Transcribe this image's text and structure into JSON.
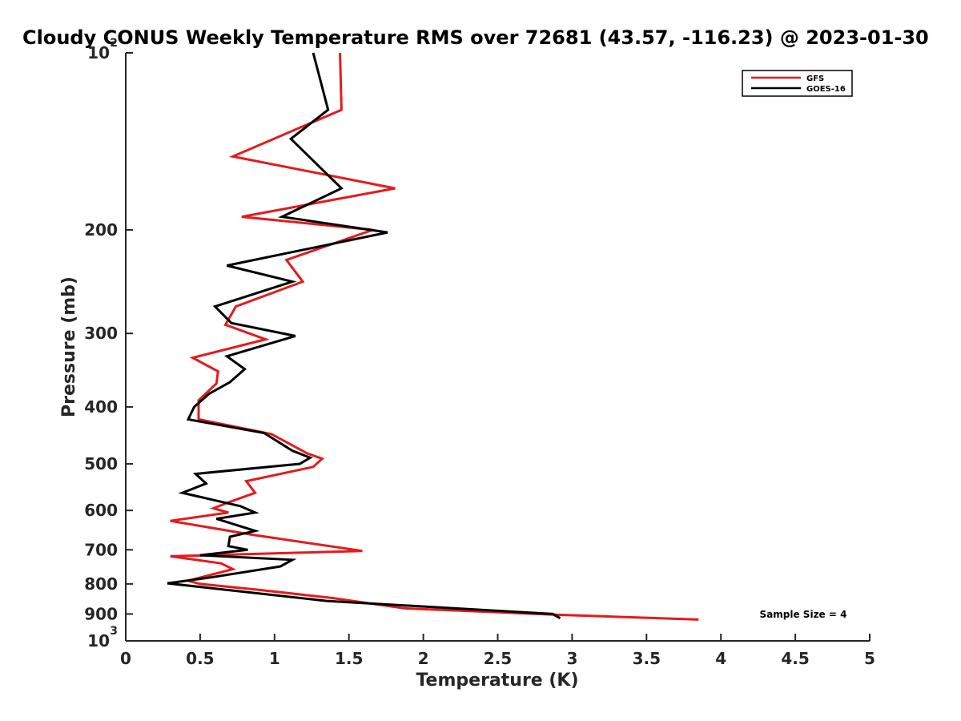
{
  "chart_data": {
    "type": "line",
    "title": "Cloudy CONUS Weekly Temperature RMS over 72681 (43.57, -116.23) @ 2023-01-30",
    "xlabel": "Temperature (K)",
    "ylabel": "Pressure (mb)",
    "xlim": [
      0,
      5
    ],
    "ylim": [
      100,
      1000
    ],
    "yscale": "log",
    "yreversed": true,
    "x_ticks": [
      0,
      0.5,
      1,
      1.5,
      2,
      2.5,
      3,
      3.5,
      4,
      4.5,
      5
    ],
    "x_tick_labels": [
      "0",
      "0.5",
      "1",
      "1.5",
      "2",
      "2.5",
      "3",
      "3.5",
      "4",
      "4.5",
      "5"
    ],
    "y_ticks": [
      {
        "value": 100,
        "label": "10",
        "exp": "2"
      },
      {
        "value": 200,
        "label": "200",
        "exp": ""
      },
      {
        "value": 300,
        "label": "300",
        "exp": ""
      },
      {
        "value": 400,
        "label": "400",
        "exp": ""
      },
      {
        "value": 500,
        "label": "500",
        "exp": ""
      },
      {
        "value": 600,
        "label": "600",
        "exp": ""
      },
      {
        "value": 700,
        "label": "700",
        "exp": ""
      },
      {
        "value": 800,
        "label": "800",
        "exp": ""
      },
      {
        "value": 900,
        "label": "900",
        "exp": ""
      },
      {
        "value": 1000,
        "label": "10",
        "exp": "3"
      }
    ],
    "grid": false,
    "legend_position": "top-right",
    "annotation": "Sample Size = 4",
    "series": [
      {
        "name": "GFS",
        "color": "#e41a1c",
        "points": [
          [
            1.44,
            100
          ],
          [
            1.45,
            125
          ],
          [
            0.72,
            150
          ],
          [
            1.81,
            170
          ],
          [
            0.78,
            190
          ],
          [
            1.66,
            200
          ],
          [
            1.08,
            225
          ],
          [
            1.19,
            245
          ],
          [
            0.74,
            270
          ],
          [
            0.67,
            290
          ],
          [
            0.94,
            307
          ],
          [
            0.45,
            330
          ],
          [
            0.62,
            348
          ],
          [
            0.61,
            365
          ],
          [
            0.49,
            390
          ],
          [
            0.49,
            420
          ],
          [
            0.98,
            445
          ],
          [
            1.22,
            480
          ],
          [
            1.32,
            490
          ],
          [
            1.26,
            506
          ],
          [
            0.81,
            535
          ],
          [
            0.87,
            560
          ],
          [
            0.7,
            580
          ],
          [
            0.59,
            595
          ],
          [
            0.69,
            605
          ],
          [
            0.3,
            625
          ],
          [
            0.85,
            660
          ],
          [
            1.59,
            703
          ],
          [
            0.3,
            718
          ],
          [
            0.64,
            738
          ],
          [
            0.72,
            755
          ],
          [
            0.42,
            790
          ],
          [
            0.5,
            800
          ],
          [
            0.88,
            818
          ],
          [
            1.38,
            845
          ],
          [
            1.87,
            880
          ],
          [
            2.86,
            902
          ],
          [
            3.85,
            920
          ]
        ]
      },
      {
        "name": "GOES-16",
        "color": "#000000",
        "points": [
          [
            1.26,
            100
          ],
          [
            1.36,
            125
          ],
          [
            1.11,
            140
          ],
          [
            1.45,
            170
          ],
          [
            1.05,
            190
          ],
          [
            1.76,
            202
          ],
          [
            0.68,
            230
          ],
          [
            1.12,
            245
          ],
          [
            0.6,
            270
          ],
          [
            0.71,
            288
          ],
          [
            1.14,
            303
          ],
          [
            0.68,
            328
          ],
          [
            0.8,
            345
          ],
          [
            0.7,
            363
          ],
          [
            0.56,
            380
          ],
          [
            0.46,
            400
          ],
          [
            0.42,
            420
          ],
          [
            0.93,
            443
          ],
          [
            1.12,
            475
          ],
          [
            1.24,
            488
          ],
          [
            1.17,
            500
          ],
          [
            0.47,
            520
          ],
          [
            0.54,
            540
          ],
          [
            0.38,
            560
          ],
          [
            0.77,
            590
          ],
          [
            0.87,
            605
          ],
          [
            0.61,
            620
          ],
          [
            0.87,
            650
          ],
          [
            0.7,
            665
          ],
          [
            0.69,
            690
          ],
          [
            0.82,
            700
          ],
          [
            0.5,
            715
          ],
          [
            1.12,
            728
          ],
          [
            1.04,
            747
          ],
          [
            0.57,
            780
          ],
          [
            0.28,
            798
          ],
          [
            1.35,
            855
          ],
          [
            2.87,
            900
          ],
          [
            2.92,
            915
          ]
        ]
      }
    ]
  }
}
